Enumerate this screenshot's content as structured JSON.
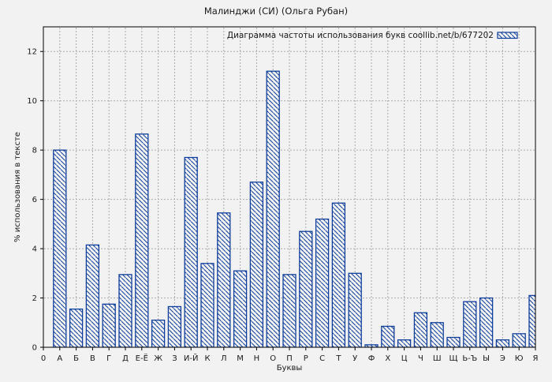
{
  "title": "Малинджи (СИ) (Ольга Рубан)",
  "legend": {
    "label": "Диаграмма частоты использования букв coollib.net/b/677202",
    "swatch": "hatched-bar-swatch"
  },
  "axes": {
    "x_label": "Буквы",
    "y_label": "% использования в тексте",
    "x_origin_label": "0",
    "y_ticks": [
      0,
      2,
      4,
      6,
      8,
      10,
      12
    ],
    "y_max": 13
  },
  "colors": {
    "background": "#f2f2f2",
    "bar_outline": "#0f3e9c",
    "bar_fill": "#f2f2f2",
    "grid": "#ababab",
    "axis": "#000000",
    "text": "#1a1a1a"
  },
  "chart_data": {
    "type": "bar",
    "title": "Малинджи (СИ) (Ольга Рубан)",
    "xlabel": "Буквы",
    "ylabel": "% использования в тексте",
    "ylim": [
      0,
      13
    ],
    "grid": true,
    "legend_label": "Диаграмма частоты использования букв coollib.net/b/677202",
    "legend_position": "top-right-inside",
    "bar_style": "blue-diagonal-hatch",
    "categories": [
      "А",
      "Б",
      "В",
      "Г",
      "Д",
      "Е-Ё",
      "Ж",
      "З",
      "И-Й",
      "К",
      "Л",
      "М",
      "Н",
      "О",
      "П",
      "Р",
      "С",
      "Т",
      "У",
      "Ф",
      "Х",
      "Ц",
      "Ч",
      "Ш",
      "Щ",
      "Ь-Ъ",
      "Ы",
      "Э",
      "Ю",
      "Я"
    ],
    "values": [
      8.0,
      1.55,
      4.15,
      1.75,
      2.95,
      8.65,
      1.1,
      1.65,
      7.7,
      3.4,
      5.45,
      3.1,
      6.7,
      11.2,
      2.95,
      4.7,
      5.2,
      5.85,
      3.0,
      0.1,
      0.85,
      0.3,
      1.4,
      1.0,
      0.4,
      1.85,
      2.0,
      0.3,
      0.55,
      2.1
    ]
  }
}
